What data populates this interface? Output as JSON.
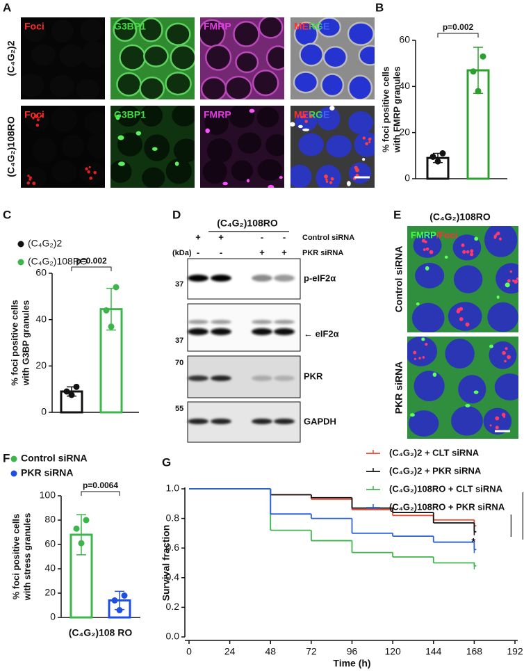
{
  "panels": [
    "A",
    "B",
    "C",
    "D",
    "E",
    "F",
    "G"
  ],
  "microscopy": {
    "columns": [
      "Foci",
      "G3BP1",
      "FMRP",
      "MERGE"
    ],
    "rows": [
      "(C₄G₂)2",
      "(C₄G₂)108RO"
    ]
  },
  "blot": {
    "title": "(C₄G₂)108RO",
    "conditions": [
      {
        "name": "Control siRNA",
        "lanes": [
          "+",
          "+",
          "-",
          "-"
        ]
      },
      {
        "name": "PKR siRNA",
        "lanes": [
          "-",
          "-",
          "+",
          "+"
        ]
      }
    ],
    "unit": "(kDa)",
    "bands": [
      {
        "name": "p-eIF2α",
        "kda": 37
      },
      {
        "name": "← eIF2α",
        "kda": 37
      },
      {
        "name": "PKR",
        "kda": 70
      },
      {
        "name": "GAPDH",
        "kda": 55
      }
    ]
  },
  "sirna_images": {
    "title": "(C₄G₂)108RO",
    "stain": [
      "FMRP",
      "/Foci"
    ],
    "rows": [
      "Control siRNA",
      "PKR siRNA"
    ]
  },
  "chart_data": [
    {
      "type": "bar",
      "ylabel": [
        "% foci positive cells",
        "with FMRP granules"
      ],
      "colors": [
        "#111111",
        "#2ca02c"
      ],
      "values": [
        9,
        47
      ],
      "errors": [
        2,
        10
      ],
      "points": [
        [
          11,
          9.5,
          7.5
        ],
        [
          53,
          46.5,
          38
        ]
      ],
      "ylim": [
        0,
        60
      ],
      "yticks": [
        0,
        20,
        40,
        60
      ],
      "annotation": "p=0.002"
    },
    {
      "type": "bar",
      "legend": [
        "(C₄G₂)2",
        "(C₄G₂)108RO"
      ],
      "ylabel": [
        "% foci positive cells",
        "with G3BP granules"
      ],
      "colors": [
        "#111111",
        "#3cb54a"
      ],
      "values": [
        9,
        44.5
      ],
      "errors": [
        2,
        9
      ],
      "points": [
        [
          11,
          9,
          7.5
        ],
        [
          54,
          44,
          37
        ]
      ],
      "ylim": [
        0,
        60
      ],
      "yticks": [
        0,
        20,
        40,
        60
      ],
      "annotation": "p=0.002"
    },
    {
      "type": "bar",
      "legend": [
        "Control siRNA",
        "PKR siRNA"
      ],
      "ylabel": [
        "% foci positive cells",
        "with stress granules"
      ],
      "xlabel": "(C₄G₂)108 RO",
      "colors": [
        "#3cb54a",
        "#1f4fe0"
      ],
      "values": [
        68,
        14
      ],
      "errors": [
        16.5,
        7.5
      ],
      "points": [
        [
          80,
          73,
          61
        ],
        [
          18,
          14,
          6
        ]
      ],
      "ylim": [
        0,
        100
      ],
      "yticks": [
        0,
        20,
        40,
        60,
        80,
        100
      ],
      "annotation": "p=0.0064"
    },
    {
      "type": "step",
      "xlabel": "Time (h)",
      "ylabel": "Survival fraction",
      "x": [
        0,
        48,
        72,
        96,
        120,
        144,
        168
      ],
      "series": [
        {
          "name": "(C₄G₂)2 + CLT siRNA",
          "color": "#e8452c",
          "values": [
            1.0,
            0.96,
            0.93,
            0.86,
            0.82,
            0.79,
            0.75
          ]
        },
        {
          "name": "(C₄G₂)2 + PKR siRNA",
          "color": "#111111",
          "values": [
            1.0,
            0.96,
            0.94,
            0.87,
            0.84,
            0.77,
            0.71
          ]
        },
        {
          "name": "(C₄G₂)108RO + CLT siRNA",
          "color": "#3cb54a",
          "values": [
            1.0,
            0.72,
            0.65,
            0.57,
            0.54,
            0.5,
            0.48
          ]
        },
        {
          "name": "(C₄G₂)108RO + PKR siRNA",
          "color": "#2a5fe0",
          "values": [
            1.0,
            0.83,
            0.8,
            0.7,
            0.68,
            0.64,
            0.59
          ]
        }
      ],
      "xlim": [
        0,
        192
      ],
      "xticks": [
        0,
        24,
        48,
        72,
        96,
        120,
        144,
        168,
        192
      ],
      "ylim": [
        0,
        1
      ],
      "yticks": [
        {
          "value": 0,
          "label": "0.0"
        },
        {
          "value": 0.2,
          "label": "0.2"
        },
        {
          "value": 0.4,
          "label": "0.4"
        },
        {
          "value": 0.6,
          "label": "0.6"
        },
        {
          "value": 0.8,
          "label": "0.8"
        },
        {
          "value": 1,
          "label": "1.0"
        }
      ],
      "annotations": [
        "**",
        "*"
      ]
    }
  ]
}
